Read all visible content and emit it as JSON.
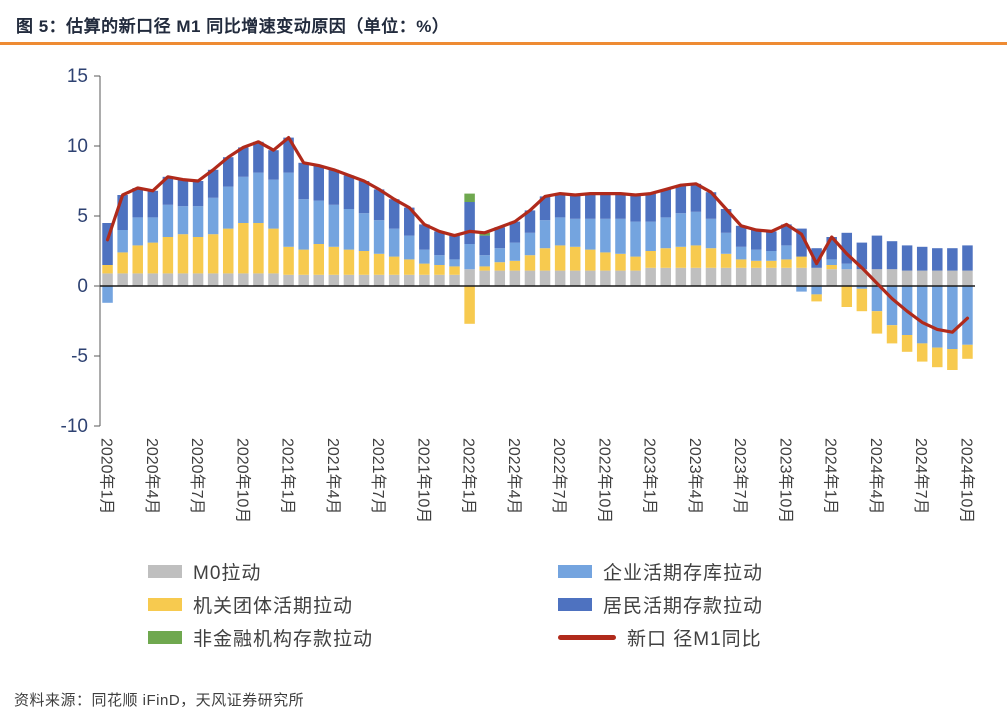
{
  "header": {
    "title": "图 5：估算的新口径 M1 同比增速变动原因（单位：%）",
    "rule_color": "#EE8B33"
  },
  "footer": {
    "source": "资料来源：同花顺 iFinD，天风证券研究所"
  },
  "chart_data": {
    "type": "bar",
    "subtype": "stacked-bars-with-line-overlay",
    "title": "估算的新口径 M1 同比增速变动原因",
    "unit": "%",
    "ylim": [
      -10,
      15
    ],
    "yticks": [
      15,
      10,
      5,
      0,
      -5,
      -10
    ],
    "grid": false,
    "x_tick_every": 3,
    "axis_color": "#595959",
    "zero_line_color": "#1a1a1a",
    "tick_label_color": "#2E4272",
    "x_label_color": "#3f3f3f",
    "x": [
      "2020年1月",
      "2020年2月",
      "2020年3月",
      "2020年4月",
      "2020年5月",
      "2020年6月",
      "2020年7月",
      "2020年8月",
      "2020年9月",
      "2020年10月",
      "2020年11月",
      "2020年12月",
      "2021年1月",
      "2021年2月",
      "2021年3月",
      "2021年4月",
      "2021年5月",
      "2021年6月",
      "2021年7月",
      "2021年8月",
      "2021年9月",
      "2021年10月",
      "2021年11月",
      "2021年12月",
      "2022年1月",
      "2022年2月",
      "2022年3月",
      "2022年4月",
      "2022年5月",
      "2022年6月",
      "2022年7月",
      "2022年8月",
      "2022年9月",
      "2022年10月",
      "2022年11月",
      "2022年12月",
      "2023年1月",
      "2023年2月",
      "2023年3月",
      "2023年4月",
      "2023年5月",
      "2023年6月",
      "2023年7月",
      "2023年8月",
      "2023年9月",
      "2023年10月",
      "2023年11月",
      "2023年12月",
      "2024年1月",
      "2024年2月",
      "2024年3月",
      "2024年4月",
      "2024年5月",
      "2024年6月",
      "2024年7月",
      "2024年8月",
      "2024年9月",
      "2024年10月"
    ],
    "series": [
      {
        "id": "m0",
        "name": "M0拉动",
        "color": "#BFBFBF",
        "values": [
          0.9,
          0.9,
          0.9,
          0.9,
          0.9,
          0.9,
          0.9,
          0.9,
          0.9,
          0.9,
          0.9,
          0.9,
          0.8,
          0.8,
          0.8,
          0.8,
          0.8,
          0.8,
          0.8,
          0.8,
          0.8,
          0.8,
          0.8,
          0.8,
          1.2,
          1.1,
          1.1,
          1.1,
          1.1,
          1.1,
          1.1,
          1.1,
          1.1,
          1.1,
          1.1,
          1.1,
          1.3,
          1.3,
          1.3,
          1.3,
          1.3,
          1.3,
          1.3,
          1.3,
          1.3,
          1.3,
          1.3,
          1.3,
          1.2,
          1.2,
          1.2,
          1.2,
          1.2,
          1.1,
          1.1,
          1.1,
          1.1,
          1.1
        ]
      },
      {
        "id": "corp",
        "name": "企业活期存库拉动",
        "color": "#74A4DF",
        "values": [
          -1.2,
          1.6,
          2.0,
          1.8,
          2.3,
          2.0,
          2.2,
          2.6,
          3.0,
          3.3,
          3.6,
          3.5,
          5.3,
          3.6,
          3.1,
          3.0,
          2.9,
          2.7,
          2.4,
          2.0,
          1.7,
          1.0,
          0.7,
          0.5,
          1.8,
          0.8,
          1.0,
          1.3,
          1.6,
          2.0,
          2.0,
          2.0,
          2.2,
          2.4,
          2.5,
          2.5,
          2.1,
          2.2,
          2.4,
          2.4,
          2.1,
          1.5,
          0.9,
          0.8,
          0.7,
          1.0,
          -0.4,
          -0.6,
          0.4,
          0.4,
          -0.2,
          -1.8,
          -2.8,
          -3.5,
          -4.1,
          -4.4,
          -4.5,
          -4.2
        ]
      },
      {
        "id": "gov",
        "name": "机关团体活期拉动",
        "color": "#F7CA4F",
        "values": [
          0.6,
          1.5,
          2.0,
          2.2,
          2.6,
          2.8,
          2.6,
          2.8,
          3.2,
          3.6,
          3.6,
          3.2,
          2.0,
          1.8,
          2.2,
          2.0,
          1.8,
          1.7,
          1.5,
          1.3,
          1.1,
          0.8,
          0.7,
          0.6,
          -2.7,
          0.3,
          0.6,
          0.7,
          1.1,
          1.6,
          1.8,
          1.7,
          1.5,
          1.3,
          1.2,
          1.0,
          1.2,
          1.4,
          1.5,
          1.6,
          1.4,
          1.0,
          0.6,
          0.5,
          0.5,
          0.6,
          0.8,
          -0.5,
          0.3,
          -1.5,
          -1.6,
          -1.6,
          -1.3,
          -1.2,
          -1.3,
          -1.4,
          -1.5,
          -1.0
        ]
      },
      {
        "id": "res",
        "name": "居民活期存款拉动",
        "color": "#4E72C0",
        "values": [
          3.0,
          2.5,
          2.1,
          1.9,
          2.0,
          1.9,
          1.8,
          2.0,
          2.1,
          2.1,
          2.2,
          2.1,
          2.5,
          2.6,
          2.5,
          2.5,
          2.4,
          2.3,
          2.2,
          2.1,
          2.0,
          1.8,
          1.7,
          1.7,
          3.0,
          1.4,
          1.5,
          1.5,
          1.6,
          1.7,
          1.7,
          1.7,
          1.8,
          1.8,
          1.8,
          1.9,
          2.0,
          2.0,
          2.0,
          2.0,
          1.9,
          1.7,
          1.5,
          1.4,
          1.4,
          1.5,
          2.0,
          1.4,
          1.6,
          2.2,
          1.9,
          2.4,
          2.0,
          1.8,
          1.7,
          1.6,
          1.6,
          1.8
        ]
      },
      {
        "id": "nonfin",
        "name": "非金融机构存款拉动",
        "color": "#6FA84F",
        "values": [
          0,
          0,
          0,
          0,
          0,
          0,
          0,
          0,
          0,
          0,
          0,
          0,
          0,
          0,
          0,
          0,
          0,
          0,
          0,
          0,
          0,
          0,
          0,
          0,
          0.6,
          0.2,
          0,
          0,
          0,
          0,
          0,
          0,
          0,
          0,
          0,
          0,
          0,
          0,
          0,
          0,
          0,
          0,
          0,
          0,
          0,
          0,
          0,
          0,
          0,
          0,
          0,
          0,
          0,
          0,
          0,
          0,
          0,
          0
        ]
      }
    ],
    "line": {
      "id": "total",
      "name": "新口 径M1同比",
      "color": "#B02A1B",
      "values": [
        3.3,
        6.5,
        7.0,
        6.8,
        7.8,
        7.6,
        7.5,
        8.3,
        9.2,
        9.9,
        10.3,
        9.7,
        10.6,
        8.8,
        8.6,
        8.3,
        7.9,
        7.5,
        6.9,
        6.2,
        5.6,
        4.4,
        3.9,
        3.6,
        3.9,
        3.8,
        4.2,
        4.6,
        5.4,
        6.4,
        6.6,
        6.5,
        6.6,
        6.6,
        6.6,
        6.5,
        6.6,
        6.9,
        7.2,
        7.3,
        6.7,
        5.5,
        4.3,
        4.0,
        3.9,
        4.4,
        3.7,
        1.6,
        3.5,
        2.3,
        1.3,
        0.2,
        -0.9,
        -1.8,
        -2.6,
        -3.1,
        -3.3,
        -2.3
      ]
    },
    "legend_order": [
      "m0",
      "corp",
      "gov",
      "res",
      "nonfin",
      "total"
    ],
    "stack_order_positive": [
      "m0",
      "gov",
      "corp",
      "res",
      "nonfin"
    ],
    "stack_order_negative": [
      "corp",
      "gov",
      "res",
      "m0",
      "nonfin"
    ]
  }
}
